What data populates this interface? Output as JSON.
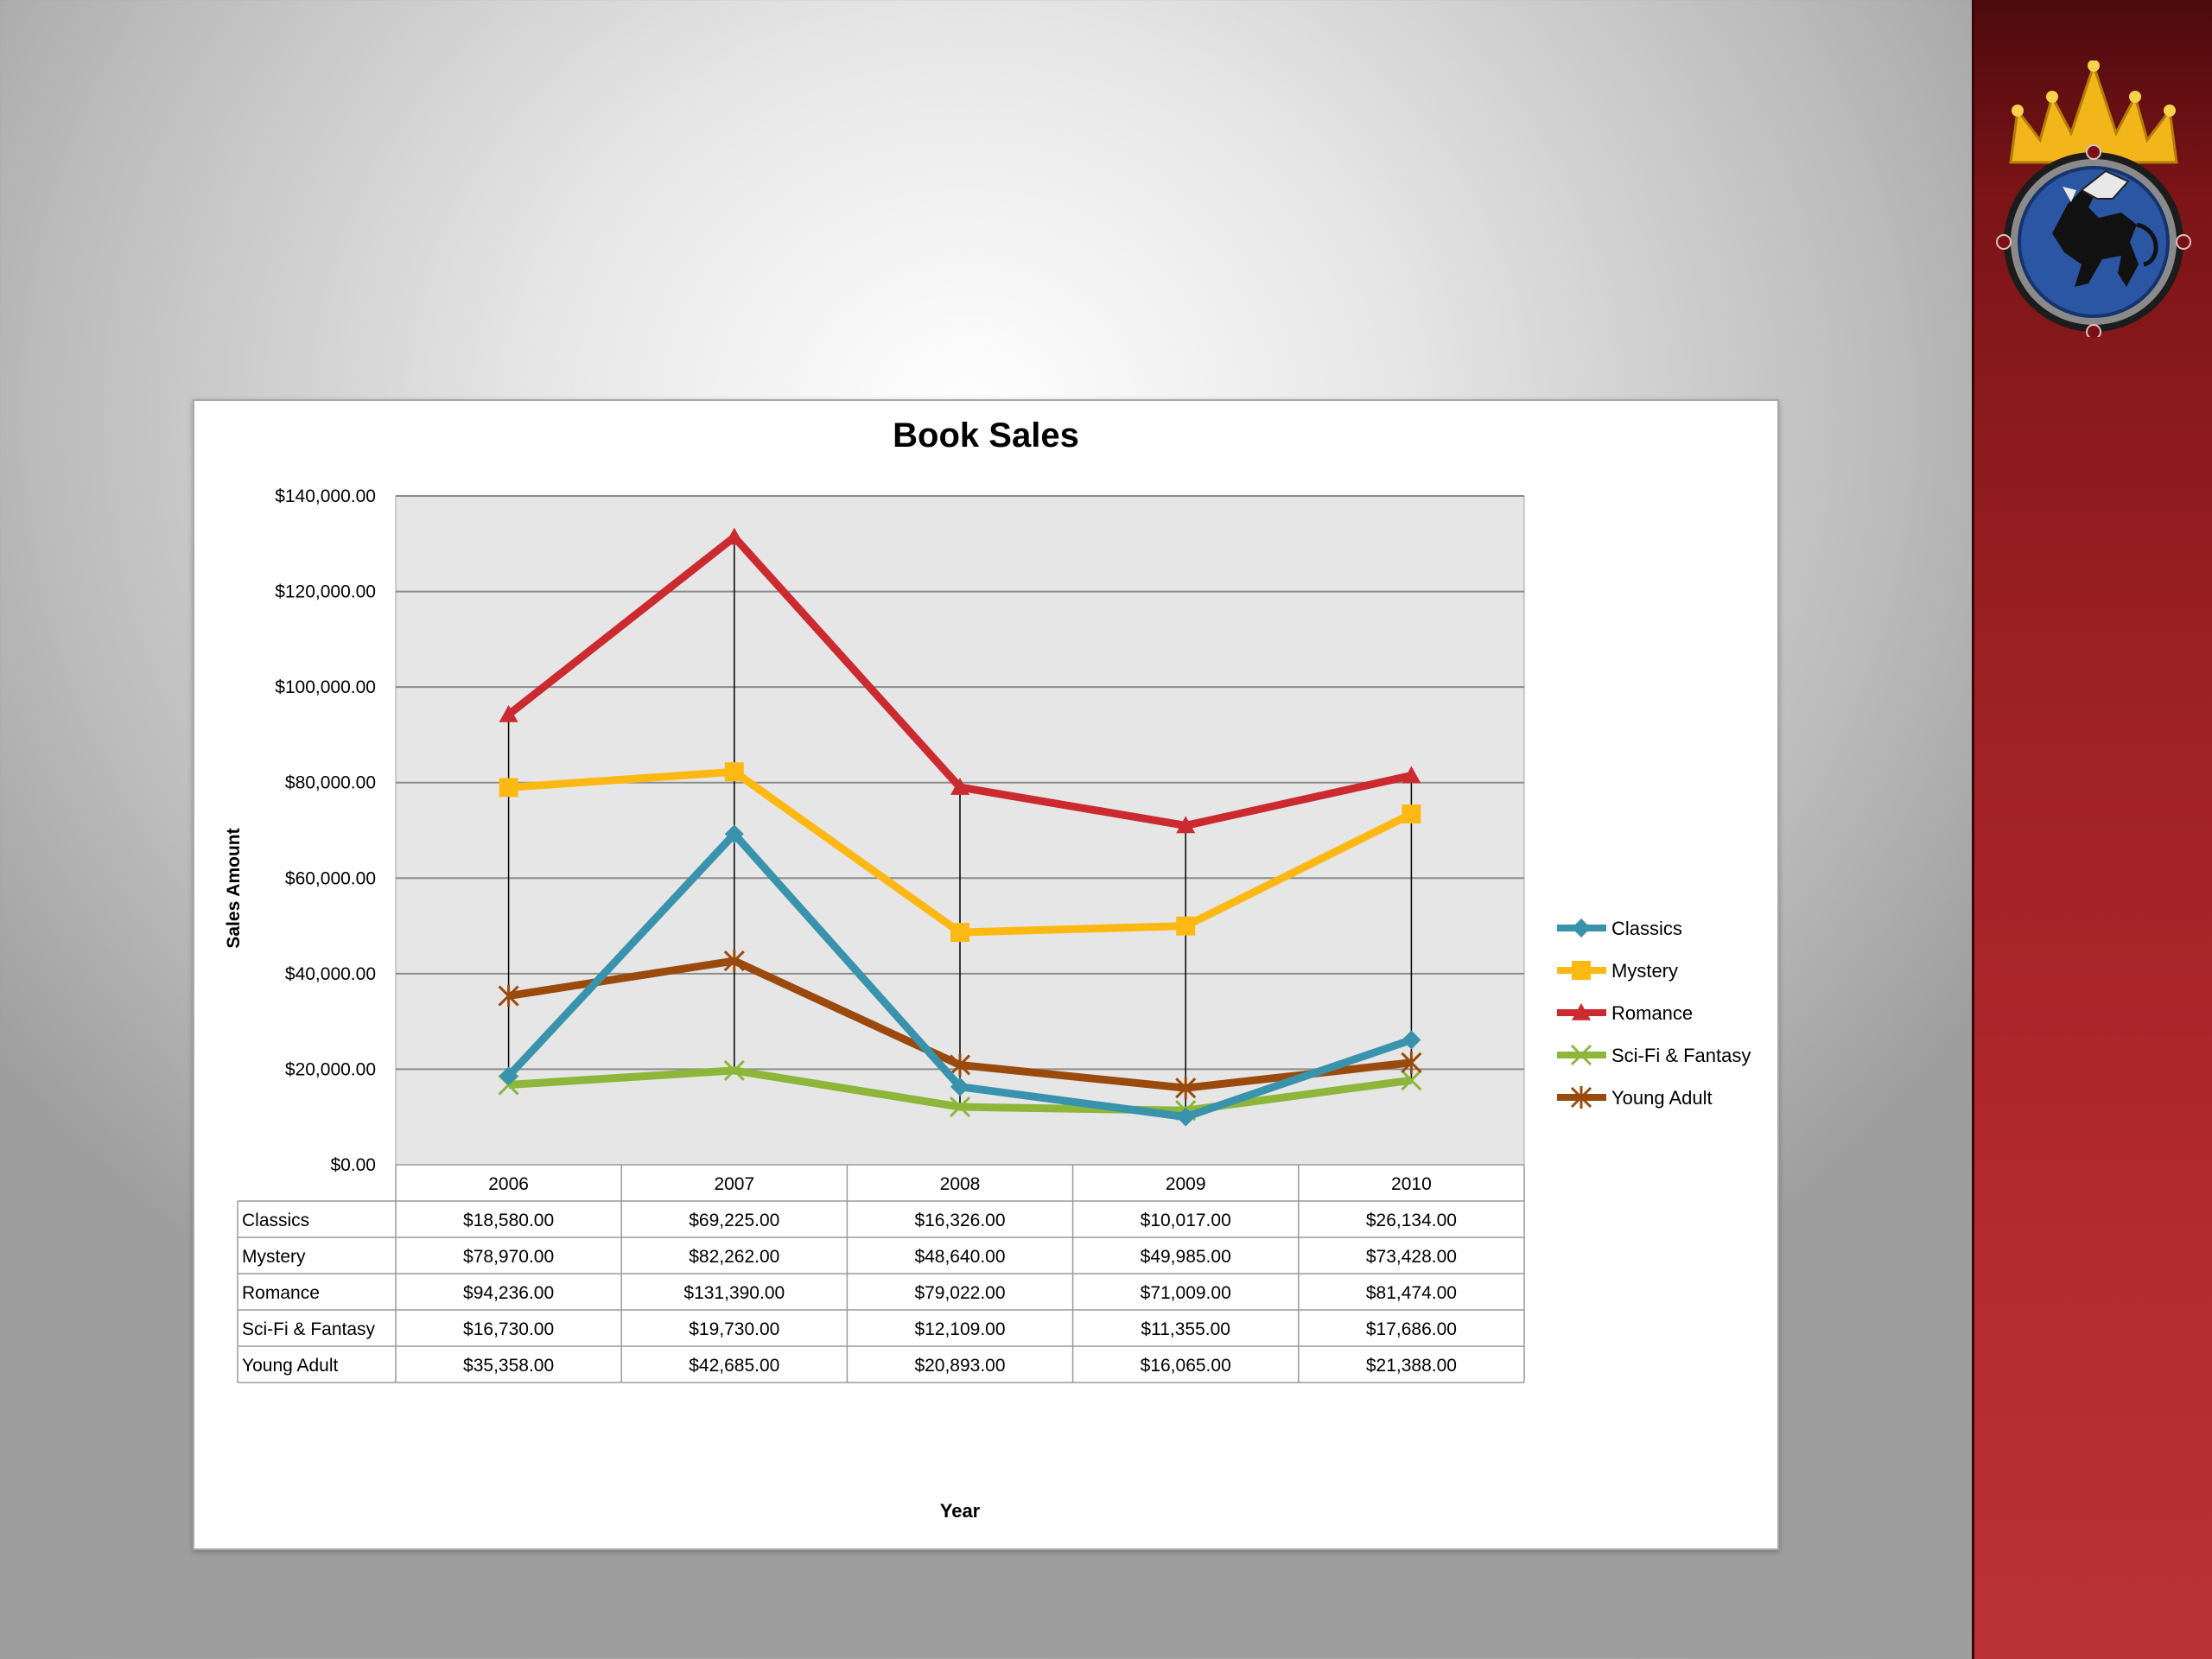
{
  "chart_data": {
    "type": "line",
    "title": "Book Sales",
    "xlabel": "Year",
    "ylabel": "Sales Amount",
    "categories": [
      "2006",
      "2007",
      "2008",
      "2009",
      "2010"
    ],
    "ylim": [
      0,
      140000
    ],
    "yticks": [
      0,
      20000,
      40000,
      60000,
      80000,
      100000,
      120000,
      140000
    ],
    "ytick_labels": [
      "$0.00",
      "$20,000.00",
      "$40,000.00",
      "$60,000.00",
      "$80,000.00",
      "$100,000.00",
      "$120,000.00",
      "$140,000.00"
    ],
    "grid": true,
    "legend_position": "right",
    "series": [
      {
        "name": "Classics",
        "color": "#3a93ad",
        "marker": "diamond",
        "values": [
          18580,
          69225,
          16326,
          10017,
          26134
        ],
        "labels": [
          "$18,580.00",
          "$69,225.00",
          "$16,326.00",
          "$10,017.00",
          "$26,134.00"
        ]
      },
      {
        "name": "Mystery",
        "color": "#fdb813",
        "marker": "square",
        "values": [
          78970,
          82262,
          48640,
          49985,
          73428
        ],
        "labels": [
          "$78,970.00",
          "$82,262.00",
          "$48,640.00",
          "$49,985.00",
          "$73,428.00"
        ]
      },
      {
        "name": "Romance",
        "color": "#cc2a31",
        "marker": "triangle",
        "values": [
          94236,
          131390,
          79022,
          71009,
          81474
        ],
        "labels": [
          "$94,236.00",
          "$131,390.00",
          "$79,022.00",
          "$71,009.00",
          "$81,474.00"
        ]
      },
      {
        "name": "Sci-Fi & Fantasy",
        "color": "#8db63b",
        "marker": "x",
        "values": [
          16730,
          19730,
          12109,
          11355,
          17686
        ],
        "labels": [
          "$16,730.00",
          "$19,730.00",
          "$12,109.00",
          "$11,355.00",
          "$17,686.00"
        ]
      },
      {
        "name": "Young Adult",
        "color": "#9b4a0d",
        "marker": "star",
        "values": [
          35358,
          42685,
          20893,
          16065,
          21388
        ],
        "labels": [
          "$35,358.00",
          "$42,685.00",
          "$20,893.00",
          "$16,065.00",
          "$21,388.00"
        ]
      }
    ]
  },
  "colors": {
    "plot_background": "#e6e6e6",
    "gridline": "#8c8c8c",
    "side_bar": "#a82428",
    "emblem_crown": "#f2b51a",
    "emblem_disc": "#2b56a3"
  },
  "emblem": {
    "icon": "crowned-griffin-emblem-icon"
  }
}
